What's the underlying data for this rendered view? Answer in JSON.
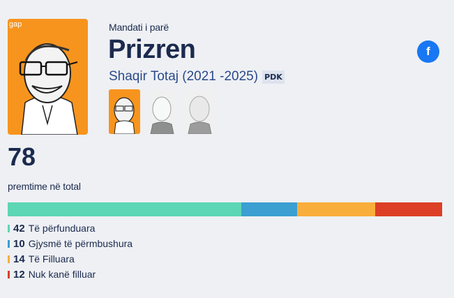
{
  "header": {
    "term_label": "Mandati i parë",
    "city": "Prizren",
    "mayor": "Shaqir Totaj (2021 -2025)",
    "party": "PDK",
    "brand_watermark": "gap",
    "social_icon": "facebook-icon"
  },
  "thumbnails": [
    {
      "name": "current-mayor-portrait",
      "active": true
    },
    {
      "name": "previous-mayor-portrait-1",
      "active": false
    },
    {
      "name": "previous-mayor-portrait-2",
      "active": false
    }
  ],
  "summary": {
    "total": "78",
    "total_label": "premtime në total"
  },
  "legend": [
    {
      "count": "42",
      "label": "Të përfunduara",
      "color": "#5cd6b4"
    },
    {
      "count": "10",
      "label": "Gjysmë të përmbushura",
      "color": "#3b9fd1"
    },
    {
      "count": "14",
      "label": "Të Filluara",
      "color": "#f9ae3b"
    },
    {
      "count": "12",
      "label": "Nuk kanë filluar",
      "color": "#dc3f25"
    }
  ],
  "chart_data": {
    "type": "bar",
    "orientation": "horizontal-stacked",
    "title": "78 premtime në total",
    "categories": [
      "Të përfunduara",
      "Gjysmë të përmbushura",
      "Të Filluara",
      "Nuk kanë filluar"
    ],
    "values": [
      42,
      10,
      14,
      12
    ],
    "colors": [
      "#5cd6b4",
      "#3b9fd1",
      "#f9ae3b",
      "#dc3f25"
    ],
    "total": 78,
    "legend_position": "bottom"
  }
}
